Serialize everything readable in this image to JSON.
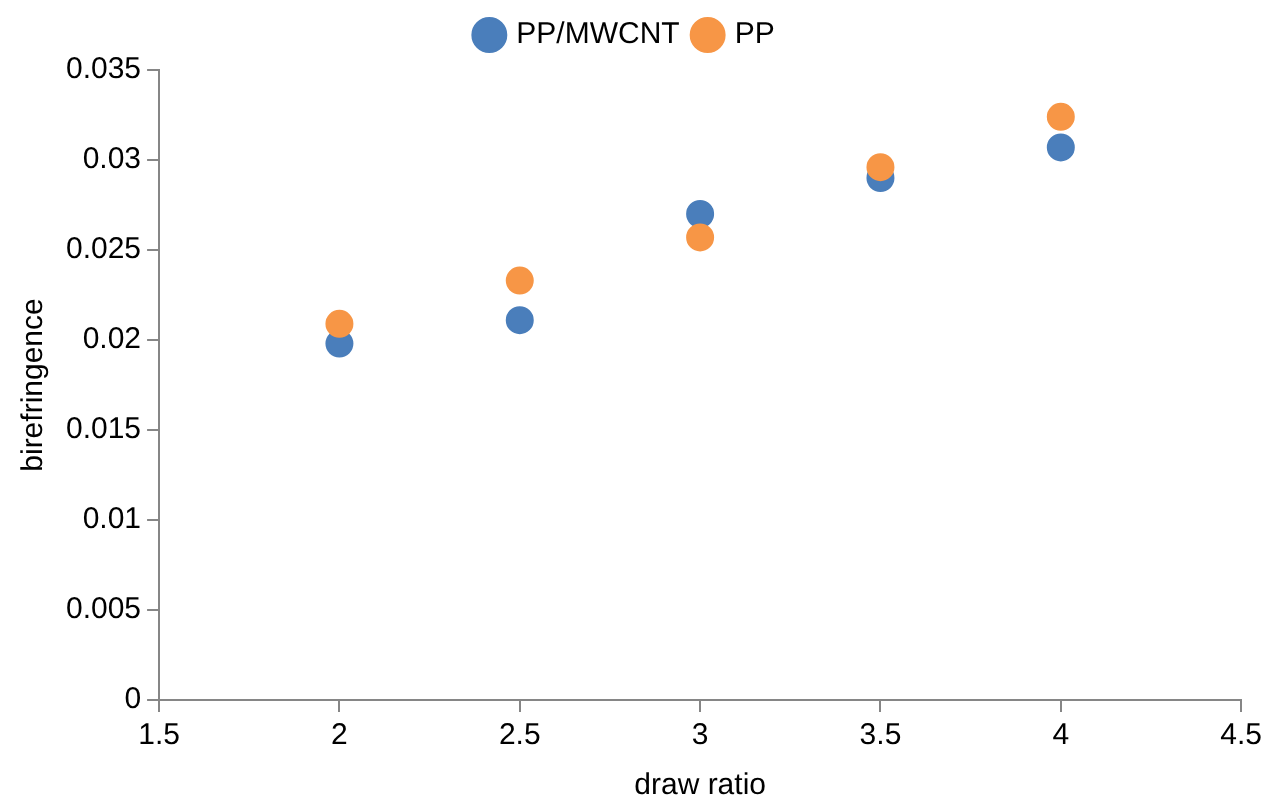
{
  "chart_data": {
    "type": "scatter",
    "xlabel": "draw ratio",
    "ylabel": "birefringence",
    "x": [
      2,
      2.5,
      3,
      3.5,
      4
    ],
    "series": [
      {
        "name": "PP/MWCNT",
        "color": "#4a7ebb",
        "values": [
          0.0198,
          0.0211,
          0.027,
          0.029,
          0.0307
        ]
      },
      {
        "name": "PP",
        "color": "#f79646",
        "values": [
          0.0209,
          0.0233,
          0.0257,
          0.0296,
          0.0324
        ]
      }
    ],
    "xlim": [
      1.5,
      4.5
    ],
    "xticks": [
      1.5,
      2,
      2.5,
      3,
      3.5,
      4,
      4.5
    ],
    "ylim": [
      0,
      0.035
    ],
    "yticks": [
      0,
      0.005,
      0.01,
      0.015,
      0.02,
      0.025,
      0.03,
      0.035
    ],
    "grid": false,
    "legend": "top",
    "marker": "circle"
  }
}
